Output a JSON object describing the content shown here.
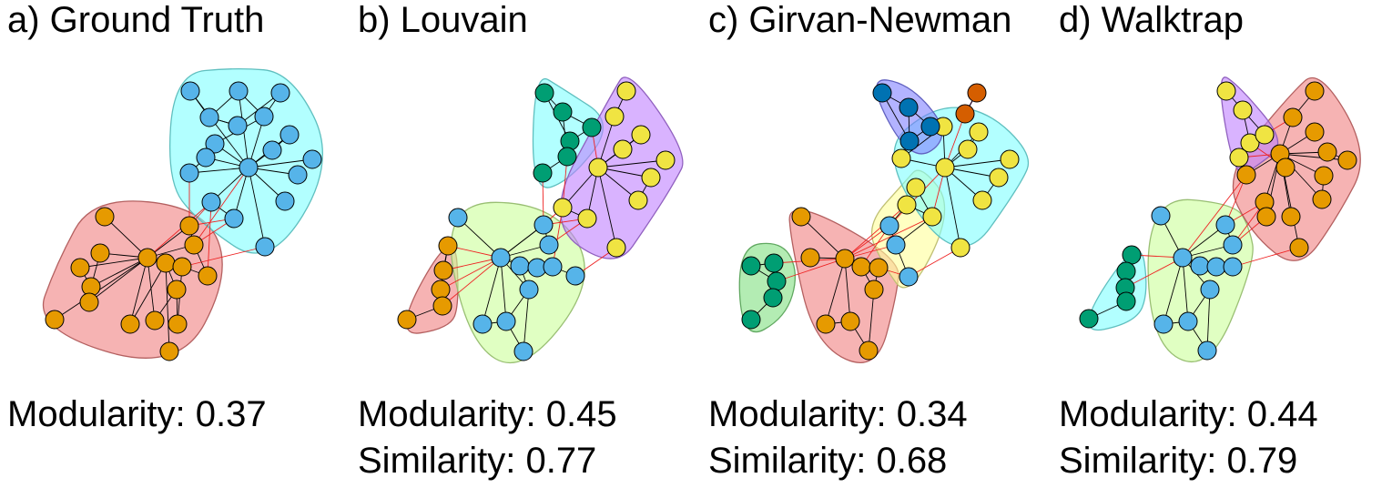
{
  "panels": [
    {
      "id": "a",
      "title": "a) Ground Truth",
      "modularity": "Modularity: 0.37",
      "similarity": "",
      "communities": [
        "#f08080",
        "#7fffff"
      ]
    },
    {
      "id": "b",
      "title": "b) Louvain",
      "modularity": "Modularity: 0.45",
      "similarity": "Similarity: 0.77",
      "communities": [
        "#f08080",
        "#ccff99",
        "#7fffff",
        "#c080ff"
      ]
    },
    {
      "id": "c",
      "title": "c) Girvan-Newman",
      "modularity": "Modularity: 0.34",
      "similarity": "Similarity: 0.68",
      "communities": [
        "#80e080",
        "#f08080",
        "#ffff99",
        "#7fffff",
        "#8080ff",
        "#ff80ff"
      ]
    },
    {
      "id": "d",
      "title": "d) Walktrap",
      "modularity": "Modularity: 0.44",
      "similarity": "Similarity: 0.79",
      "communities": [
        "#7fffff",
        "#ccff99",
        "#f08080",
        "#c080ff"
      ]
    }
  ],
  "node_colors": {
    "orange": "#e69a00",
    "blue": "#56b4e9",
    "yellow": "#f0e442",
    "green": "#009e73",
    "navy": "#0072b2",
    "vermillion": "#d55e00"
  }
}
